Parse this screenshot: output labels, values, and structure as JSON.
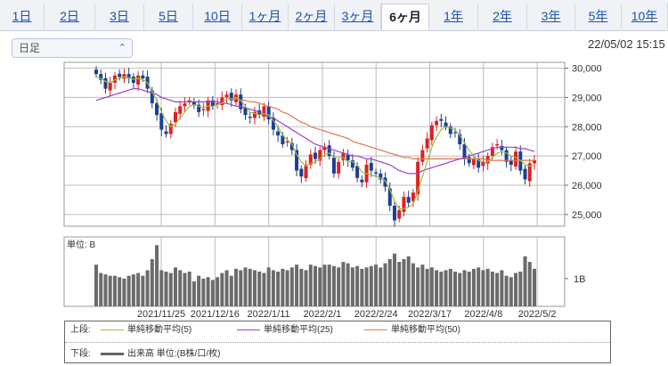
{
  "tabs": [
    "1日",
    "2日",
    "3日",
    "5日",
    "10日",
    "1ヶ月",
    "2ヶ月",
    "3ヶ月",
    "6ヶ月",
    "1年",
    "2年",
    "3年",
    "5年",
    "10年"
  ],
  "active_tab": "6ヶ月",
  "period_select": {
    "value": "日足"
  },
  "timestamp": "22/05/02 15:15",
  "chart_data": [
    {
      "type": "candlestick",
      "y_ticks": [
        "30,000",
        "29,000",
        "28,000",
        "27,000",
        "26,000",
        "25,000"
      ],
      "ylim": [
        24600,
        30200
      ],
      "x_ticks": [
        "2021/11/25",
        "2021/12/16",
        "2022/1/11",
        "2022/2/1",
        "2022/2/24",
        "2022/3/17",
        "2022/4/8",
        "2022/5/2"
      ],
      "colors": {
        "up": "#e02020",
        "down": "#1c3f95",
        "ma5": "#9bbf3a",
        "ma25": "#9b3fd0",
        "ma50": "#e2764f"
      },
      "closes": [
        29800,
        29600,
        29300,
        29500,
        29750,
        29700,
        29800,
        29650,
        29500,
        29750,
        29650,
        29300,
        28800,
        28400,
        27900,
        27750,
        28100,
        28500,
        28700,
        28800,
        28900,
        28750,
        28500,
        28600,
        28900,
        28700,
        28800,
        29000,
        29100,
        28900,
        29100,
        28600,
        28400,
        28300,
        28500,
        28400,
        28700,
        28250,
        27900,
        27700,
        27400,
        27500,
        27200,
        26500,
        26300,
        26700,
        27050,
        26900,
        27200,
        27300,
        27000,
        26400,
        26800,
        27100,
        26850,
        26600,
        26250,
        26100,
        26700,
        26500,
        26400,
        26200,
        25950,
        25300,
        24800,
        25150,
        25600,
        25400,
        25750,
        26800,
        27200,
        27600,
        28050,
        28200,
        28200,
        28000,
        27750,
        27800,
        27400,
        26900,
        26750,
        26900,
        26600,
        26800,
        27000,
        27300,
        27400,
        27200,
        26800,
        26700,
        27150,
        26500,
        26200,
        26750,
        26850
      ],
      "ma5": [
        29700,
        29650,
        29550,
        29500,
        29600,
        29650,
        29700,
        29680,
        29620,
        29650,
        29620,
        29500,
        29200,
        28900,
        28500,
        28200,
        28000,
        28100,
        28300,
        28500,
        28700,
        28750,
        28700,
        28650,
        28700,
        28700,
        28750,
        28800,
        28950,
        28950,
        29000,
        28900,
        28700,
        28500,
        28450,
        28400,
        28450,
        28400,
        28200,
        28000,
        27700,
        27550,
        27400,
        27050,
        26800,
        26650,
        26750,
        26800,
        26900,
        27050,
        27100,
        26950,
        26950,
        26950,
        26800,
        26800,
        26700,
        26450,
        26400,
        26350,
        26300,
        26250,
        26150,
        25850,
        25450,
        25200,
        25200,
        25250,
        25350,
        25800,
        26300,
        26800,
        27300,
        27650,
        27900,
        28000,
        27950,
        27900,
        27700,
        27450,
        27200,
        27000,
        26850,
        26800,
        26800,
        26950,
        27100,
        27150,
        27100,
        27000,
        26950,
        26850,
        26700,
        26650,
        26700
      ],
      "ma25": [
        28900,
        28950,
        29000,
        29050,
        29100,
        29150,
        29200,
        29250,
        29300,
        29300,
        29250,
        29200,
        29150,
        29100,
        29000,
        28950,
        28900,
        28850,
        28850,
        28850,
        28850,
        28850,
        28850,
        28850,
        28850,
        28850,
        28850,
        28800,
        28800,
        28750,
        28700,
        28700,
        28650,
        28600,
        28550,
        28500,
        28400,
        28350,
        28300,
        28200,
        28100,
        28000,
        27900,
        27800,
        27700,
        27600,
        27500,
        27400,
        27350,
        27300,
        27250,
        27200,
        27150,
        27100,
        27050,
        27000,
        27000,
        26950,
        26900,
        26900,
        26850,
        26800,
        26750,
        26700,
        26600,
        26500,
        26450,
        26400,
        26400,
        26400,
        26500,
        26550,
        26600,
        26650,
        26700,
        26750,
        26800,
        26850,
        26900,
        26950,
        27000,
        27050,
        27100,
        27150,
        27200,
        27250,
        27300,
        27300,
        27300,
        27300,
        27300,
        27250,
        27250,
        27200,
        27150
      ],
      "ma50": [
        null,
        null,
        null,
        null,
        null,
        null,
        null,
        null,
        null,
        null,
        null,
        null,
        null,
        null,
        null,
        null,
        null,
        null,
        null,
        null,
        null,
        null,
        null,
        null,
        null,
        null,
        null,
        null,
        null,
        28950,
        28950,
        28900,
        28900,
        28850,
        28850,
        28800,
        28750,
        28700,
        28650,
        28600,
        28500,
        28450,
        28350,
        28250,
        28150,
        28100,
        28000,
        27950,
        27900,
        27850,
        27800,
        27750,
        27700,
        27650,
        27600,
        27500,
        27450,
        27400,
        27350,
        27300,
        27250,
        27200,
        27150,
        27100,
        27050,
        27000,
        26950,
        26950,
        26900,
        26900,
        26900,
        26900,
        26900,
        26900,
        26900,
        26900,
        26900,
        26900,
        26900,
        26900,
        26900,
        26900,
        26900,
        26900,
        26850,
        26850,
        26850,
        26850,
        26850,
        26850,
        26850,
        26850,
        26850,
        26850,
        26850
      ],
      "unit_label": "単位: B",
      "volume_tick": "1B",
      "volume_max": 2.5,
      "volumes": [
        1.5,
        1.2,
        1.15,
        1.1,
        1.1,
        1.05,
        1.0,
        1.1,
        1.15,
        1.2,
        1.1,
        1.3,
        1.7,
        2.2,
        1.3,
        1.25,
        1.2,
        1.4,
        1.3,
        1.2,
        1.25,
        0.9,
        1.1,
        1.0,
        1.05,
        0.95,
        1.05,
        1.2,
        1.3,
        1.1,
        1.35,
        1.3,
        1.4,
        1.35,
        1.3,
        1.25,
        1.2,
        1.4,
        1.3,
        1.25,
        1.35,
        1.3,
        1.4,
        1.5,
        1.35,
        1.3,
        1.5,
        1.45,
        1.4,
        1.5,
        1.5,
        1.45,
        1.4,
        1.6,
        1.55,
        1.4,
        1.45,
        1.35,
        1.4,
        1.45,
        1.5,
        1.4,
        1.55,
        1.7,
        1.9,
        1.6,
        1.7,
        1.8,
        1.55,
        1.4,
        1.5,
        1.35,
        1.4,
        1.3,
        1.25,
        1.3,
        1.35,
        1.25,
        1.2,
        1.3,
        1.25,
        1.35,
        1.4,
        1.3,
        1.35,
        1.25,
        1.2,
        1.3,
        1.1,
        1.05,
        1.2,
        1.25,
        1.8,
        1.6,
        1.35
      ]
    }
  ],
  "legend": {
    "upper_label": "上段:",
    "lower_label": "下段:",
    "ma5": "単純移動平均(5)",
    "ma25": "単純移動平均(25)",
    "ma50": "単純移動平均(50)",
    "volume": "出来高 単位:(B株/口/枚)"
  }
}
